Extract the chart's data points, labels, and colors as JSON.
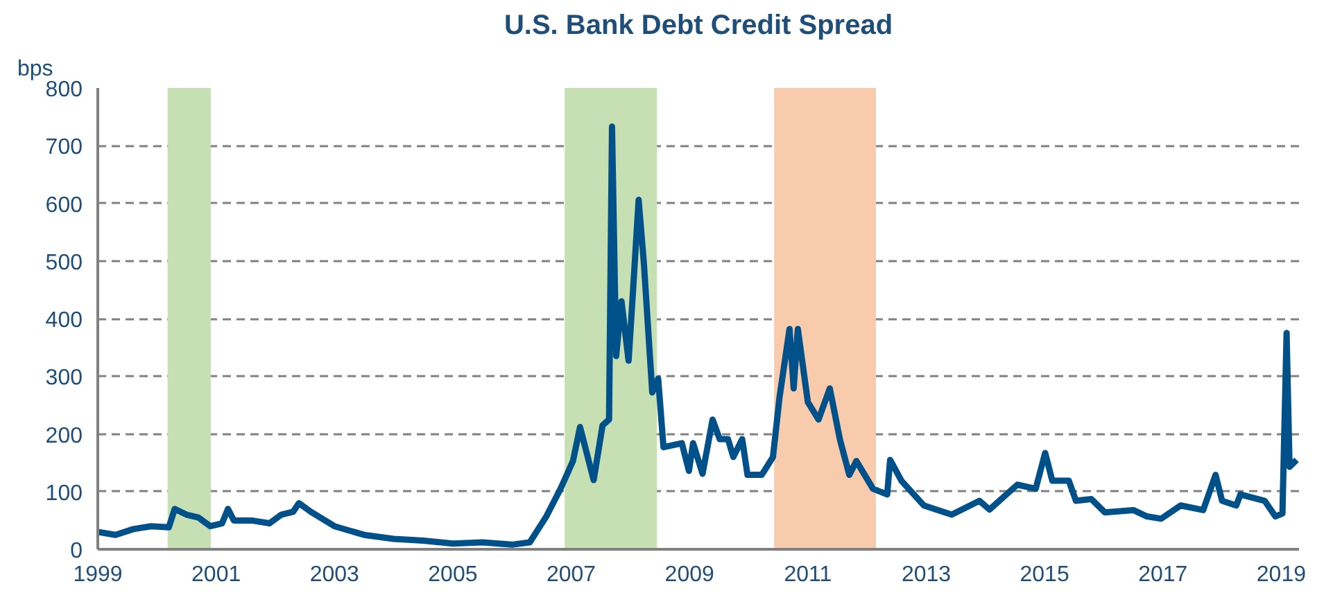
{
  "chart_data": {
    "type": "line",
    "title": "U.S. Bank Debt Credit Spread",
    "ylabel": "bps",
    "x": [
      1999.0,
      1999.3,
      1999.6,
      1999.9,
      2000.2,
      2000.3,
      2000.5,
      2000.7,
      2000.9,
      2001.1,
      2001.2,
      2001.3,
      2001.6,
      2001.9,
      2002.1,
      2002.3,
      2002.4,
      2002.6,
      2003.0,
      2003.5,
      2004.0,
      2004.5,
      2005.0,
      2005.5,
      2006.0,
      2006.3,
      2006.58,
      2006.82,
      2007.03,
      2007.15,
      2007.38,
      2007.53,
      2007.64,
      2007.69,
      2007.76,
      2007.85,
      2007.97,
      2008.04,
      2008.14,
      2008.23,
      2008.37,
      2008.47,
      2008.56,
      2008.87,
      2008.99,
      2009.06,
      2009.22,
      2009.39,
      2009.51,
      2009.65,
      2009.74,
      2009.89,
      2009.98,
      2010.22,
      2010.41,
      2010.52,
      2010.69,
      2010.76,
      2010.83,
      2011.0,
      2011.18,
      2011.37,
      2011.54,
      2011.7,
      2011.82,
      2012.1,
      2012.34,
      2012.39,
      2012.58,
      2012.96,
      2013.43,
      2013.9,
      2014.07,
      2014.54,
      2014.85,
      2015.01,
      2015.13,
      2015.41,
      2015.53,
      2015.79,
      2016.02,
      2016.5,
      2016.73,
      2016.97,
      2017.3,
      2017.68,
      2017.89,
      2018.0,
      2018.24,
      2018.31,
      2018.72,
      2018.9,
      2019.02,
      2019.09,
      2019.14,
      2019.26
    ],
    "series": [
      {
        "color": "#00508a",
        "values": [
          30,
          25,
          35,
          40,
          38,
          70,
          60,
          55,
          40,
          45,
          70,
          50,
          50,
          45,
          60,
          65,
          80,
          65,
          40,
          25,
          18,
          15,
          10,
          12,
          8,
          12,
          57,
          105,
          153,
          212,
          120,
          215,
          225,
          733,
          335,
          430,
          327,
          440,
          606,
          494,
          272,
          296,
          177,
          184,
          136,
          184,
          131,
          225,
          191,
          191,
          160,
          191,
          129,
          129,
          160,
          263,
          382,
          279,
          382,
          255,
          225,
          279,
          191,
          129,
          153,
          105,
          95,
          155,
          119,
          76,
          60,
          84,
          69,
          112,
          105,
          167,
          119,
          119,
          84,
          87,
          64,
          68,
          57,
          53,
          76,
          68,
          129,
          84,
          76,
          95,
          84,
          57,
          62,
          375,
          143,
          155
        ]
      }
    ],
    "xlim": [
      1999,
      2019.3
    ],
    "xticks": [
      1999,
      2001,
      2003,
      2005,
      2007,
      2009,
      2011,
      2013,
      2015,
      2017,
      2019
    ],
    "ylim": [
      0,
      800
    ],
    "yticks": [
      0,
      100,
      200,
      300,
      400,
      500,
      600,
      700,
      800
    ],
    "grid": "y",
    "line_style": "solid",
    "marker": "none",
    "bands": [
      {
        "axis": "x",
        "from": 2000.18,
        "to": 2000.91,
        "color": "#c6e0b4"
      },
      {
        "axis": "x",
        "from": 2006.89,
        "to": 2008.45,
        "color": "#c6e0b4"
      },
      {
        "axis": "x",
        "from": 2010.43,
        "to": 2012.15,
        "color": "#f8cbad"
      }
    ]
  }
}
